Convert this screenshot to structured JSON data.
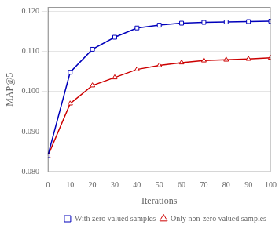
{
  "chart_data": {
    "type": "line",
    "xlabel": "Iterations",
    "ylabel": "MAP@5",
    "x": [
      0,
      10,
      20,
      30,
      40,
      50,
      60,
      70,
      80,
      90,
      100
    ],
    "series": [
      {
        "name": "With zero valued samples",
        "color": "#0000bb",
        "marker": "square",
        "line_style": "solid",
        "values": [
          0.0841,
          0.1048,
          0.1105,
          0.1135,
          0.1158,
          0.1165,
          0.117,
          0.1172,
          0.1173,
          0.1174,
          0.1175
        ]
      },
      {
        "name": "Only non-zero valued samples",
        "color": "#cc0000",
        "marker": "triangle",
        "line_style": "solid",
        "values": [
          0.084,
          0.097,
          0.1015,
          0.1035,
          0.1055,
          0.1065,
          0.1072,
          0.1077,
          0.1079,
          0.1081,
          0.1084
        ]
      }
    ],
    "xlim": [
      0,
      100
    ],
    "xticks": [
      0,
      10,
      20,
      30,
      40,
      50,
      60,
      70,
      80,
      90,
      100
    ],
    "ylim": [
      0.08,
      0.121
    ],
    "yticks": [
      {
        "value": 0.08,
        "label": "0.080"
      },
      {
        "value": 0.09,
        "label": "0.090"
      },
      {
        "value": 0.1,
        "label": "0.100"
      },
      {
        "value": 0.11,
        "label": "0.110"
      },
      {
        "value": 0.12,
        "label": "0.120"
      }
    ],
    "grid": "y",
    "legend": "lower right"
  }
}
